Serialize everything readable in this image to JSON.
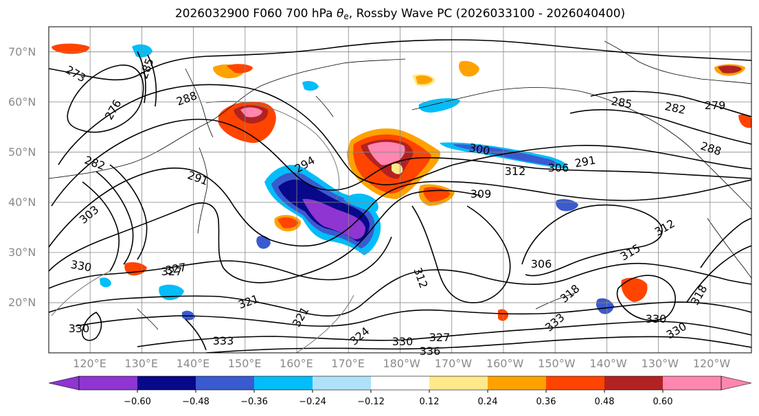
{
  "title": {
    "prefix": "2026032900 F060 700 hPa ",
    "theta": "θ",
    "theta_sub": "e",
    "suffix": ", Rossby Wave PC (2026033100 - 2026040400)"
  },
  "map": {
    "extent": {
      "lon": [
        112,
        248
      ],
      "lat": [
        10,
        75
      ]
    },
    "lat_labels": [
      "20°N",
      "30°N",
      "40°N",
      "50°N",
      "60°N",
      "70°N"
    ],
    "lat_values": [
      20,
      30,
      40,
      50,
      60,
      70
    ],
    "lon_labels": [
      "120°E",
      "130°E",
      "140°E",
      "150°E",
      "160°E",
      "170°E",
      "180°W",
      "170°W",
      "160°W",
      "150°W",
      "140°W",
      "130°W",
      "120°W"
    ],
    "lon_values": [
      120,
      130,
      140,
      150,
      160,
      170,
      180,
      190,
      200,
      210,
      220,
      230,
      240
    ],
    "contour_labels": [
      "273",
      "285",
      "276",
      "288",
      "282",
      "285",
      "282",
      "279",
      "288",
      "300",
      "306",
      "291",
      "312",
      "294",
      "291",
      "309",
      "303",
      "330",
      "327",
      "306",
      "312",
      "315",
      "312",
      "318",
      "321",
      "324",
      "327",
      "330",
      "333",
      "336",
      "330",
      "333",
      "330",
      "321",
      "318",
      "327",
      "330"
    ]
  },
  "colorbar": {
    "ticks": [
      "−0.60",
      "−0.48",
      "−0.36",
      "−0.24",
      "−0.12",
      "0.12",
      "0.24",
      "0.36",
      "0.48",
      "0.60"
    ],
    "tick_values": [
      -0.6,
      -0.48,
      -0.36,
      -0.24,
      -0.12,
      0.12,
      0.24,
      0.36,
      0.48,
      0.6
    ],
    "colors": [
      "#8e35d2",
      "#08088a",
      "#3a5ad0",
      "#03bdf9",
      "#aee2fb",
      "#ffffff",
      "#ffe98a",
      "#ffa200",
      "#ff4400",
      "#b22222",
      "#ff86b0",
      "#ff86b0"
    ],
    "under_color": "#8e35d2",
    "over_color": "#ff86b0"
  }
}
